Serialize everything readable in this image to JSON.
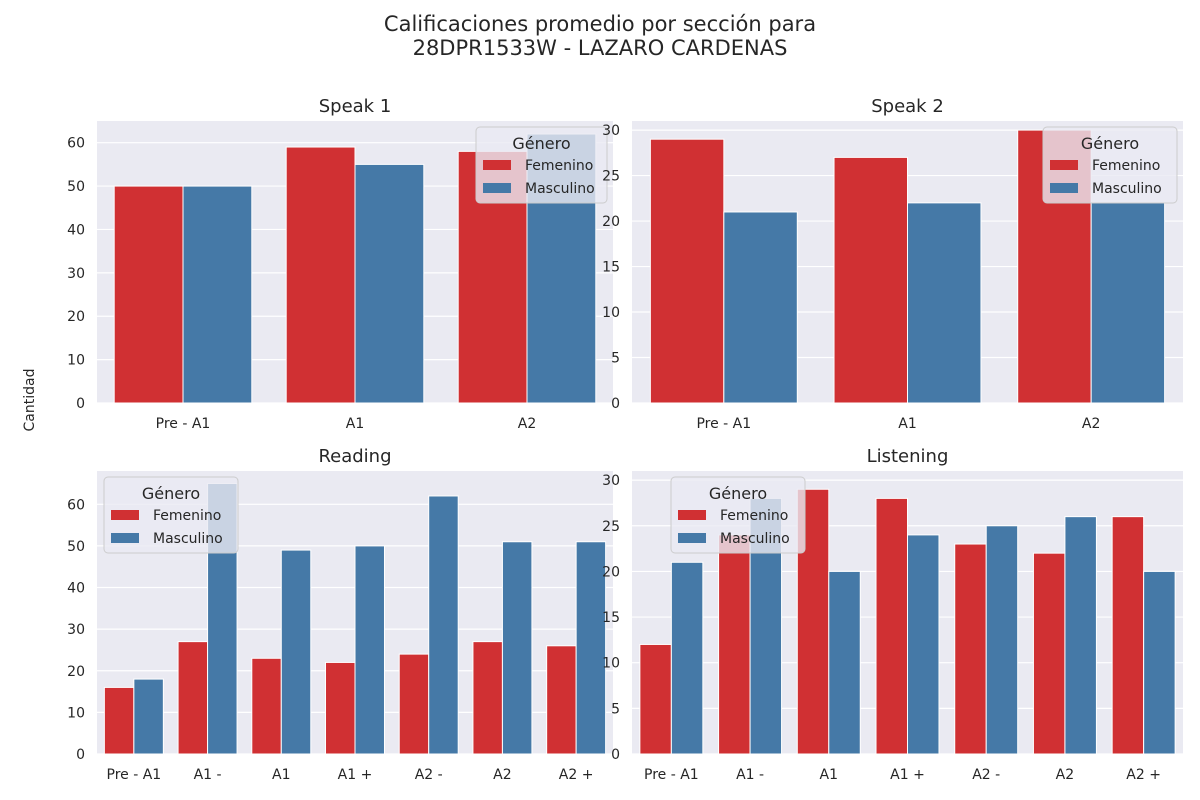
{
  "figure": {
    "title_line1": "Calificaciones promedio por sección para",
    "title_line2": "28DPR1533W - LAZARO CARDENAS",
    "ylabel": "Cantidad"
  },
  "colors": {
    "Femenino": "#d03033",
    "Masculino": "#4579a7",
    "plot_bg": "#eaeaf2",
    "grid": "#ffffff"
  },
  "chart_data": [
    {
      "type": "bar",
      "title": "Speak 1",
      "categories": [
        "Pre - A1",
        "A1",
        "A2"
      ],
      "series": [
        {
          "name": "Femenino",
          "values": [
            50,
            59,
            58
          ]
        },
        {
          "name": "Masculino",
          "values": [
            50,
            55,
            62
          ]
        }
      ],
      "ylim": [
        0,
        65
      ],
      "yticks": [
        0,
        10,
        20,
        30,
        40,
        50,
        60
      ],
      "legend": {
        "title": "Género",
        "placement": "top-right"
      },
      "grid": true
    },
    {
      "type": "bar",
      "title": "Speak 2",
      "categories": [
        "Pre - A1",
        "A1",
        "A2"
      ],
      "series": [
        {
          "name": "Femenino",
          "values": [
            29,
            27,
            30
          ]
        },
        {
          "name": "Masculino",
          "values": [
            21,
            22,
            22
          ]
        }
      ],
      "ylim": [
        0,
        31
      ],
      "yticks": [
        0,
        5,
        10,
        15,
        20,
        25,
        30
      ],
      "legend": {
        "title": "Género",
        "placement": "top-right"
      },
      "grid": true
    },
    {
      "type": "bar",
      "title": "Reading",
      "categories": [
        "Pre - A1",
        "A1 -",
        "A1",
        "A1 +",
        "A2 -",
        "A2",
        "A2 +"
      ],
      "series": [
        {
          "name": "Femenino",
          "values": [
            16,
            27,
            23,
            22,
            24,
            27,
            26
          ]
        },
        {
          "name": "Masculino",
          "values": [
            18,
            65,
            49,
            50,
            62,
            51,
            51
          ]
        }
      ],
      "ylim": [
        0,
        68
      ],
      "yticks": [
        0,
        10,
        20,
        30,
        40,
        50,
        60
      ],
      "legend": {
        "title": "Género",
        "placement": "top-left"
      },
      "grid": true
    },
    {
      "type": "bar",
      "title": "Listening",
      "categories": [
        "Pre - A1",
        "A1 -",
        "A1",
        "A1 +",
        "A2 -",
        "A2",
        "A2 +"
      ],
      "series": [
        {
          "name": "Femenino",
          "values": [
            12,
            24,
            29,
            28,
            23,
            22,
            26
          ]
        },
        {
          "name": "Masculino",
          "values": [
            21,
            28,
            20,
            24,
            25,
            26,
            20
          ]
        }
      ],
      "ylim": [
        0,
        31
      ],
      "yticks": [
        0,
        5,
        10,
        15,
        20,
        25,
        30
      ],
      "legend": {
        "title": "Género",
        "placement": "top-left"
      },
      "grid": true
    }
  ]
}
